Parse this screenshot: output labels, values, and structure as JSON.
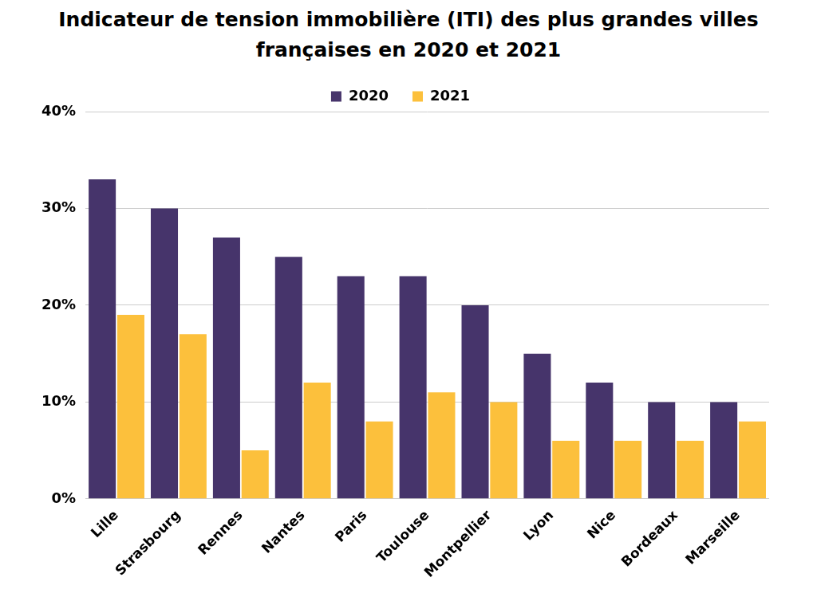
{
  "chart_data": {
    "type": "bar",
    "title": "Indicateur de tension immobilière (ITI) des plus grandes villes françaises en 2020 et 2021",
    "categories": [
      "Lille",
      "Strasbourg",
      "Rennes",
      "Nantes",
      "Paris",
      "Toulouse",
      "Montpellier",
      "Lyon",
      "Nice",
      "Bordeaux",
      "Marseille"
    ],
    "series": [
      {
        "name": "2020",
        "color": "#46346b",
        "values": [
          33,
          30,
          27,
          25,
          23,
          23,
          20,
          15,
          12,
          10,
          10
        ]
      },
      {
        "name": "2021",
        "color": "#fcc03c",
        "values": [
          19,
          17,
          5,
          12,
          8,
          11,
          10,
          6,
          6,
          6,
          8
        ]
      }
    ],
    "ylim": [
      0,
      40
    ],
    "yticks": [
      {
        "value": 0,
        "label": "0%"
      },
      {
        "value": 10,
        "label": "10%"
      },
      {
        "value": 20,
        "label": "20%"
      },
      {
        "value": 30,
        "label": "30%"
      },
      {
        "value": 40,
        "label": "40%"
      }
    ],
    "grid": true,
    "legend": "top"
  }
}
